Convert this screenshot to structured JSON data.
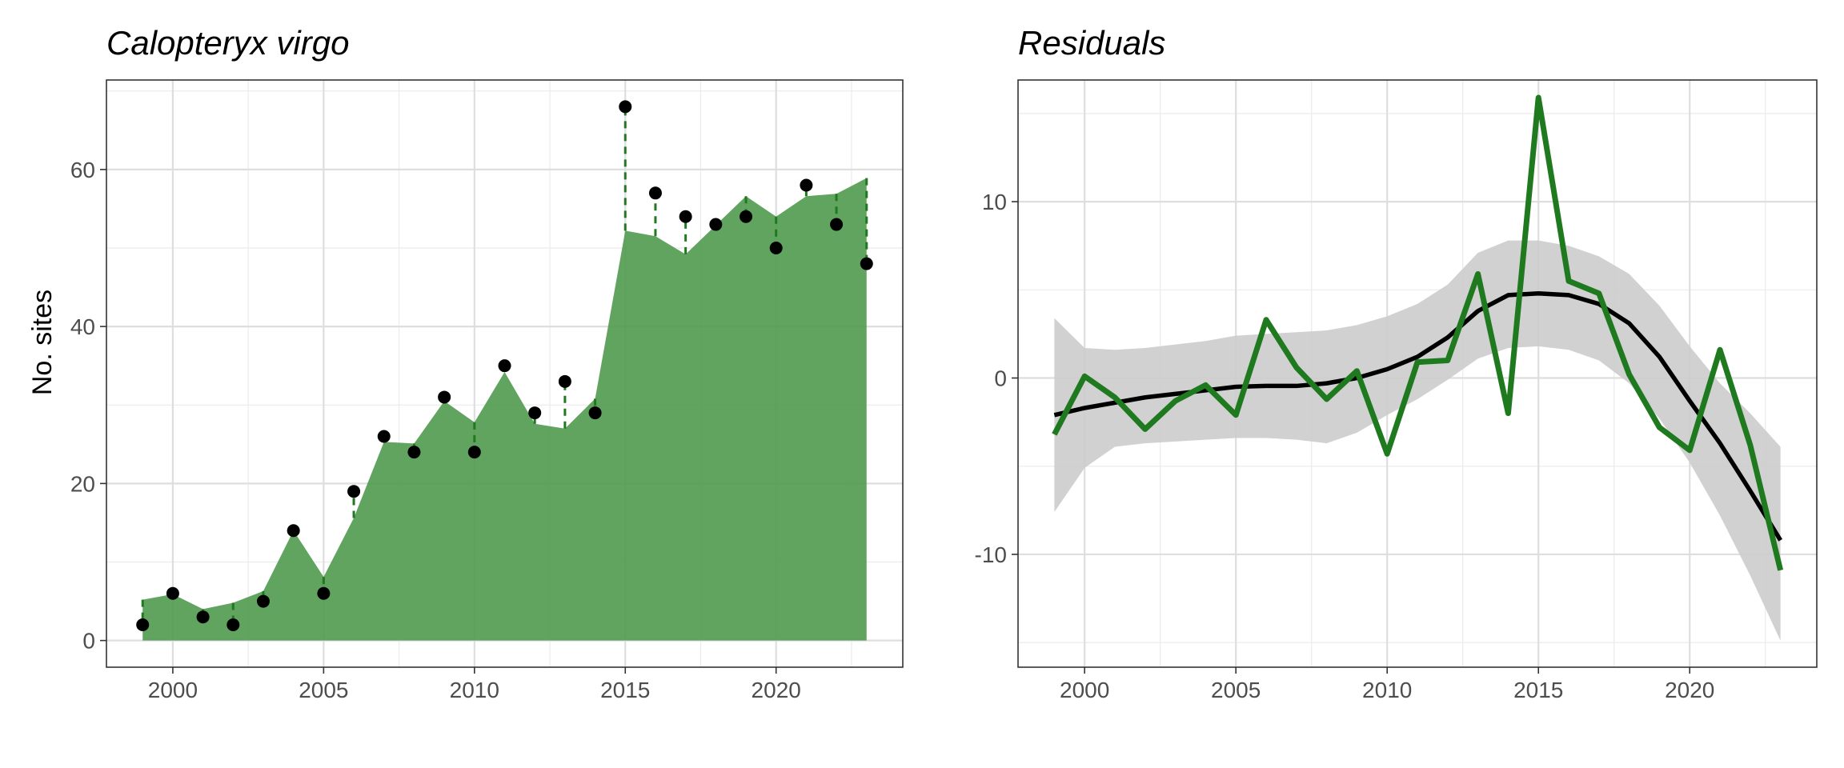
{
  "chart_data": [
    {
      "type": "area",
      "title": "Calopteryx virgo",
      "xlabel": "",
      "ylabel": "No. sites",
      "xlim": [
        1997.8,
        2024.2
      ],
      "ylim": [
        -3.4,
        71.4
      ],
      "x_ticks": [
        2000,
        2005,
        2010,
        2015,
        2020
      ],
      "y_ticks": [
        0,
        20,
        40,
        60
      ],
      "grid": true,
      "colors": {
        "fill": "#4f9a4f",
        "residual_line": "#1f7a1f",
        "point": "#000000"
      },
      "series": [
        {
          "name": "",
          "kind": "fitted_area",
          "x": [
            1999,
            2000,
            2001,
            2002,
            2003,
            2004,
            2005,
            2006,
            2007,
            2008,
            2009,
            2010,
            2011,
            2012,
            2013,
            2014,
            2015,
            2016,
            2017,
            2018,
            2019,
            2020,
            2021,
            2022,
            2023
          ],
          "y": [
            5.2,
            5.9,
            4.0,
            4.8,
            6.3,
            14.0,
            8.1,
            15.6,
            25.3,
            25.1,
            30.5,
            27.8,
            34.2,
            27.6,
            27.0,
            30.8,
            52.2,
            51.5,
            49.2,
            52.9,
            56.6,
            54.0,
            56.6,
            56.9,
            58.9
          ]
        },
        {
          "name": "",
          "kind": "observed_points",
          "x": [
            1999,
            2000,
            2001,
            2002,
            2003,
            2004,
            2005,
            2006,
            2007,
            2008,
            2009,
            2010,
            2011,
            2012,
            2013,
            2014,
            2015,
            2016,
            2017,
            2018,
            2019,
            2020,
            2021,
            2022,
            2023
          ],
          "y": [
            2,
            6,
            3,
            2,
            5,
            14,
            6,
            19,
            26,
            24,
            31,
            24,
            35,
            29,
            33,
            29,
            68,
            57,
            54,
            53,
            54,
            50,
            58,
            53,
            48
          ]
        }
      ]
    },
    {
      "type": "line",
      "title": "Residuals",
      "xlabel": "",
      "ylabel": "",
      "xlim": [
        1997.8,
        2024.2
      ],
      "ylim": [
        -16.4,
        16.9
      ],
      "x_ticks": [
        2000,
        2005,
        2010,
        2015,
        2020
      ],
      "y_ticks": [
        -10,
        0,
        10
      ],
      "grid": true,
      "colors": {
        "residual_line": "#1f7a1f",
        "smooth_line": "#000000",
        "ribbon": "#cccccc"
      },
      "series": [
        {
          "name": "",
          "kind": "residuals",
          "x": [
            1999,
            2000,
            2001,
            2002,
            2003,
            2004,
            2005,
            2006,
            2007,
            2008,
            2009,
            2010,
            2011,
            2012,
            2013,
            2014,
            2015,
            2016,
            2017,
            2018,
            2019,
            2020,
            2021,
            2022,
            2023
          ],
          "y": [
            -3.2,
            0.1,
            -1.1,
            -2.9,
            -1.3,
            -0.4,
            -2.1,
            3.3,
            0.6,
            -1.2,
            0.4,
            -4.3,
            0.9,
            1.0,
            5.9,
            -2.0,
            15.9,
            5.5,
            4.8,
            0.2,
            -2.8,
            -4.1,
            1.6,
            -3.8,
            -10.9
          ]
        },
        {
          "name": "",
          "kind": "smooth",
          "x": [
            1999,
            2000,
            2001,
            2002,
            2003,
            2004,
            2005,
            2006,
            2007,
            2008,
            2009,
            2010,
            2011,
            2012,
            2013,
            2014,
            2015,
            2016,
            2017,
            2018,
            2019,
            2020,
            2021,
            2022,
            2023
          ],
          "y": [
            -2.1,
            -1.7,
            -1.4,
            -1.1,
            -0.9,
            -0.7,
            -0.5,
            -0.45,
            -0.45,
            -0.3,
            0.0,
            0.5,
            1.2,
            2.3,
            3.8,
            4.7,
            4.8,
            4.7,
            4.2,
            3.1,
            1.2,
            -1.3,
            -3.7,
            -6.4,
            -9.2
          ],
          "lower": [
            -7.6,
            -5.1,
            -3.9,
            -3.7,
            -3.6,
            -3.5,
            -3.4,
            -3.4,
            -3.5,
            -3.7,
            -3.1,
            -2.1,
            -1.2,
            -0.1,
            1.1,
            1.7,
            1.8,
            1.6,
            1.0,
            -0.3,
            -2.3,
            -4.8,
            -7.8,
            -11.2,
            -14.9
          ],
          "upper": [
            3.4,
            1.7,
            1.6,
            1.7,
            1.9,
            2.1,
            2.4,
            2.5,
            2.6,
            2.7,
            3.0,
            3.5,
            4.2,
            5.3,
            7.1,
            7.8,
            7.8,
            7.5,
            6.9,
            5.9,
            4.1,
            1.8,
            -0.3,
            -2.0,
            -3.9
          ]
        }
      ]
    }
  ]
}
